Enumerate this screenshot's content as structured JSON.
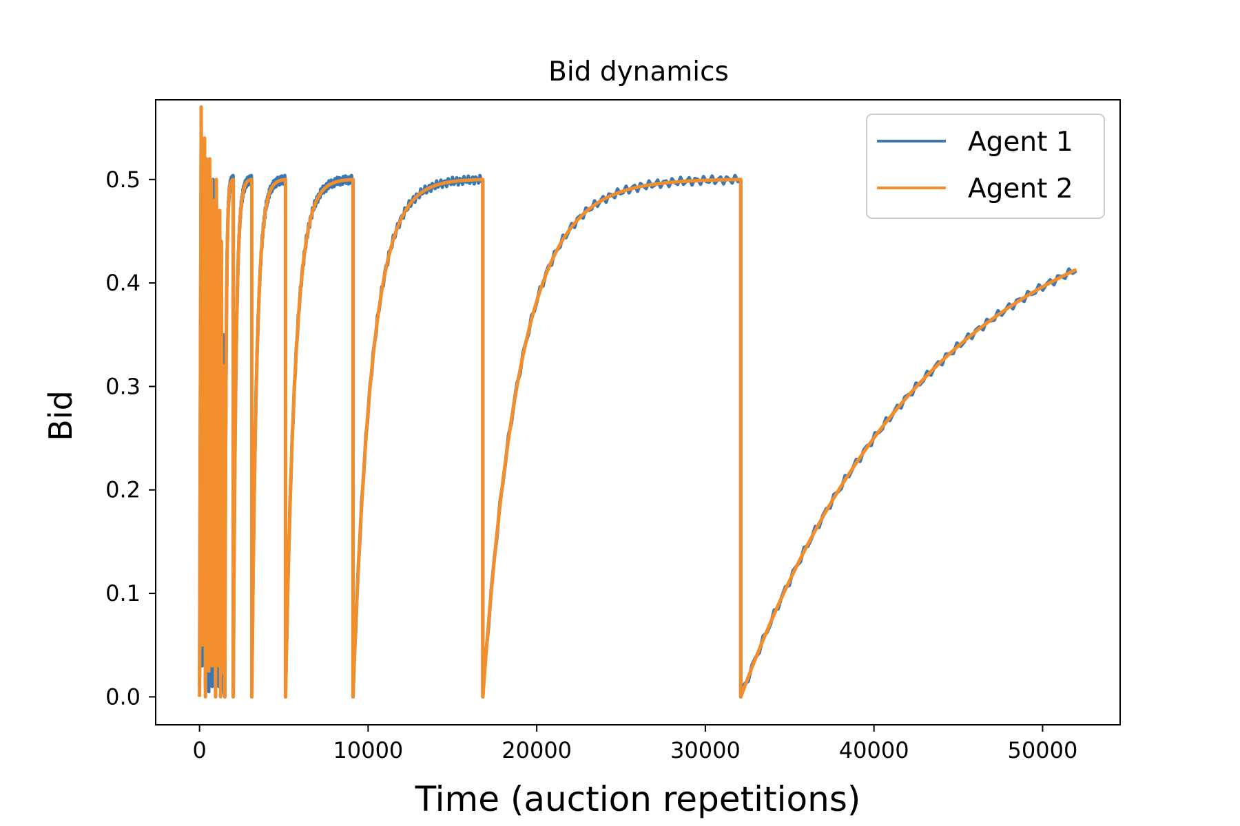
{
  "chart_data": {
    "type": "line",
    "title": "Bid dynamics",
    "xlabel": "Time (auction repetitions)",
    "ylabel": "Bid",
    "xlim": [
      -2600,
      54600
    ],
    "ylim": [
      -0.027,
      0.577
    ],
    "xticks": [
      0,
      10000,
      20000,
      30000,
      40000,
      50000
    ],
    "xtick_labels": [
      "0",
      "10000",
      "20000",
      "30000",
      "40000",
      "50000"
    ],
    "yticks": [
      0.0,
      0.1,
      0.2,
      0.3,
      0.4,
      0.5
    ],
    "ytick_labels": [
      "0.0",
      "0.1",
      "0.2",
      "0.3",
      "0.4",
      "0.5"
    ],
    "grid": false,
    "legend_position": "upper right",
    "cycles": [
      {
        "start": 1500,
        "end": 2000
      },
      {
        "start": 2000,
        "end": 3100
      },
      {
        "start": 3100,
        "end": 5100
      },
      {
        "start": 5100,
        "end": 9100
      },
      {
        "start": 9100,
        "end": 16800
      },
      {
        "start": 16800,
        "end": 32100
      },
      {
        "start": 32100,
        "end": 52000,
        "end_value": 0.413
      }
    ],
    "early_oscillation": {
      "x": [
        0,
        100,
        150,
        200,
        250,
        300,
        350,
        400,
        450,
        500,
        550,
        600,
        650,
        700,
        750,
        800,
        850,
        900,
        950,
        1000,
        1050,
        1100,
        1150,
        1200,
        1250,
        1300,
        1350,
        1400,
        1450,
        1500
      ],
      "y": [
        0.01,
        0.55,
        0.03,
        0.5,
        0.05,
        0.52,
        0.01,
        0.5,
        0.02,
        0.45,
        0.005,
        0.5,
        0.08,
        0.48,
        0.01,
        0.5,
        0.02,
        0.46,
        0.005,
        0.48,
        0.1,
        0.44,
        0.01,
        0.45,
        0.02,
        0.42,
        0.01,
        0.35,
        0.005,
        0.0
      ]
    },
    "series": [
      {
        "name": "Agent 1",
        "color": "#3a78b5"
      },
      {
        "name": "Agent 2",
        "color": "#f28e2b"
      }
    ]
  }
}
